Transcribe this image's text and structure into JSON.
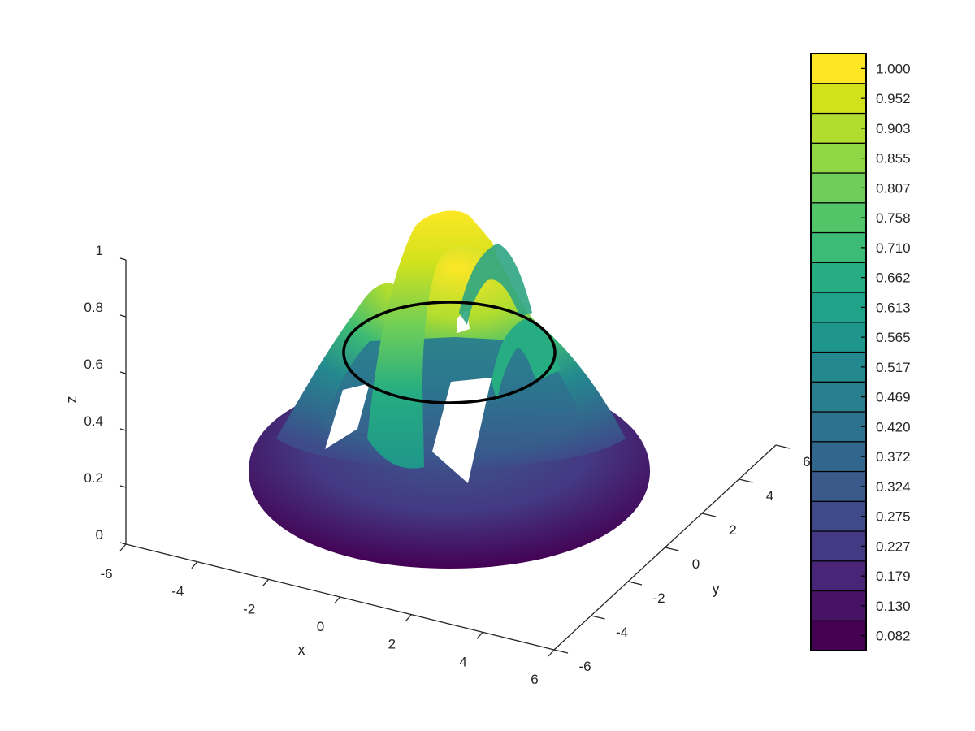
{
  "chart_data": {
    "type": "surface3d",
    "title": "",
    "xlabel": "x",
    "ylabel": "y",
    "zlabel": "z",
    "xlim": [
      -6,
      6
    ],
    "ylim": [
      -6,
      6
    ],
    "zlim": [
      0,
      1
    ],
    "x_ticks": [
      "-6",
      "-4",
      "-2",
      "0",
      "2",
      "4",
      "6"
    ],
    "y_ticks": [
      "-6",
      "-4",
      "-2",
      "0",
      "2",
      "4",
      "6"
    ],
    "z_ticks": [
      "0",
      "0.2",
      "0.4",
      "0.6",
      "0.8",
      "1"
    ],
    "colormap": "viridis",
    "colorbar": {
      "levels": [
        "0.082",
        "0.130",
        "0.179",
        "0.227",
        "0.275",
        "0.324",
        "0.372",
        "0.420",
        "0.469",
        "0.517",
        "0.565",
        "0.613",
        "0.662",
        "0.710",
        "0.758",
        "0.807",
        "0.855",
        "0.903",
        "0.952",
        "1.000"
      ],
      "colors": [
        "#440154",
        "#471365",
        "#482576",
        "#443983",
        "#3f4a8a",
        "#3a5a8c",
        "#32678d",
        "#2d728e",
        "#297f8e",
        "#24898e",
        "#1f968b",
        "#1fa287",
        "#26ad81",
        "#3bbb75",
        "#52c569",
        "#6ece58",
        "#8fd744",
        "#b0dd2f",
        "#d1e21b",
        "#fde725"
      ]
    },
    "contour_level": 0.6
  }
}
